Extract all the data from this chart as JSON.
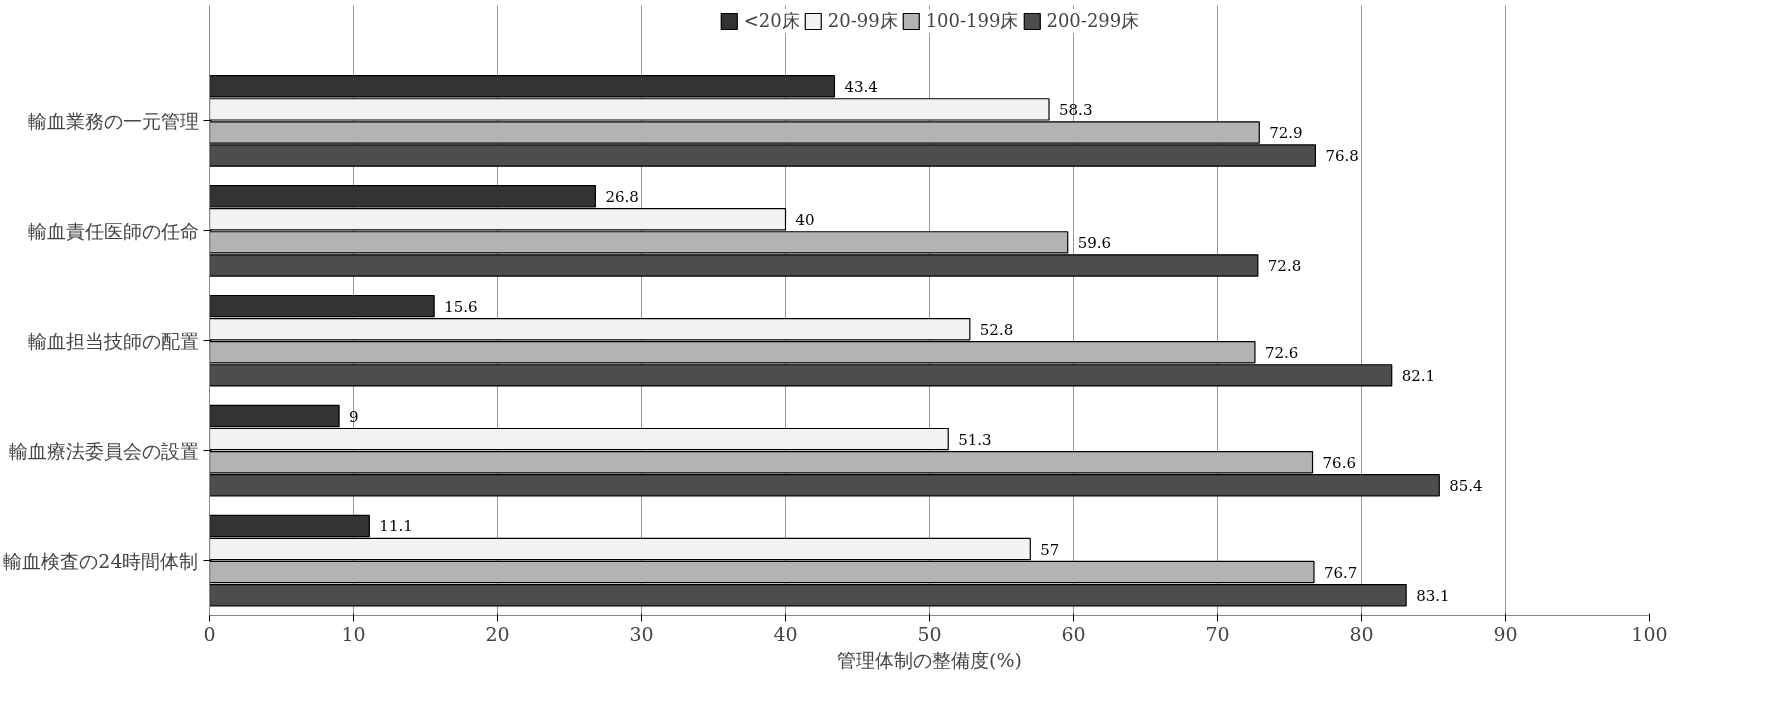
{
  "chart_data": {
    "type": "bar",
    "orientation": "horizontal",
    "xlabel": "管理体制の整備度(%)",
    "categories": [
      "輸血業務の一元管理",
      "輸血責任医師の任命",
      "輸血担当技師の配置",
      "輸血療法委員会の設置",
      "輸血検査の24時間体制"
    ],
    "series": [
      {
        "name": "<20床",
        "color": "#333333",
        "values": [
          43.4,
          26.8,
          15.6,
          9,
          11.1
        ]
      },
      {
        "name": "20-99床",
        "color": "#f2f2f2",
        "values": [
          58.3,
          40,
          52.8,
          51.3,
          57
        ]
      },
      {
        "name": "100-199床",
        "color": "#b3b3b3",
        "values": [
          72.9,
          59.6,
          72.6,
          76.6,
          76.7
        ]
      },
      {
        "name": "200-299床",
        "color": "#4d4d4d",
        "values": [
          76.8,
          72.8,
          82.1,
          85.4,
          83.1
        ]
      }
    ],
    "xlim": [
      0,
      100
    ],
    "xticks": [
      0,
      10,
      20,
      30,
      40,
      50,
      60,
      70,
      80,
      90,
      100
    ],
    "grid": "x",
    "legend": "top",
    "data_labels": true
  }
}
